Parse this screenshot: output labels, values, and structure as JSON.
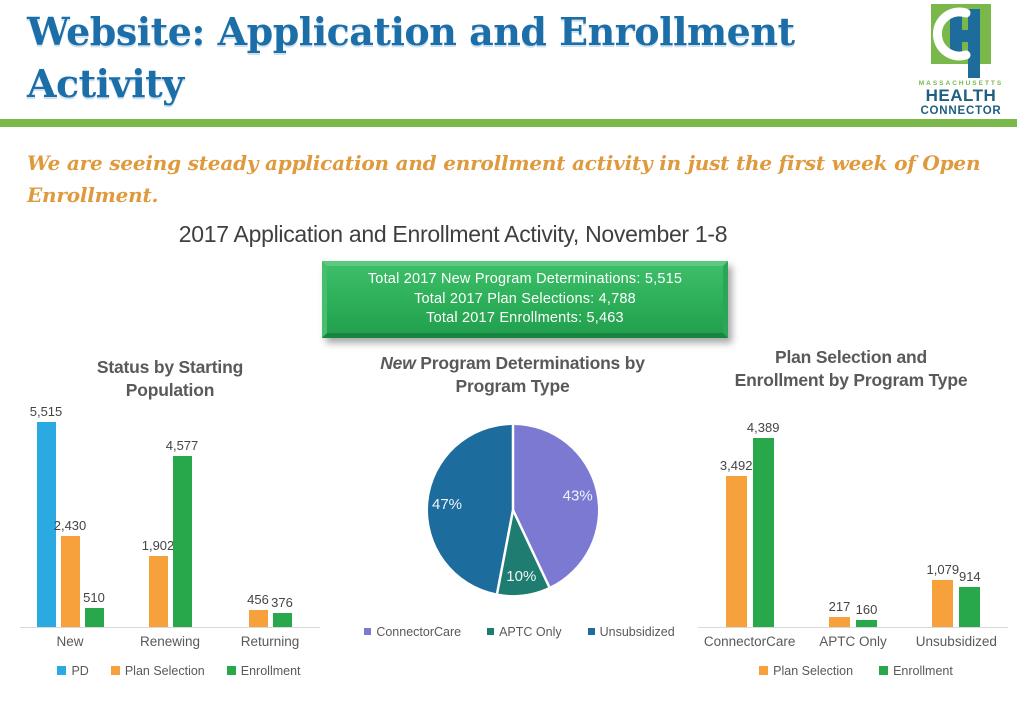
{
  "header": {
    "title": "Website: Application and Enrollment Activity",
    "logo": {
      "brand_top": "MASSACHUSETTS",
      "brand_mid": "HEALTH",
      "brand_bottom": "CONNECTOR"
    }
  },
  "intro_text": "We are seeing steady application and enrollment activity in just the first week of Open Enrollment.",
  "section_title": "2017 Application and Enrollment Activity, November 1-8",
  "summary_box": {
    "lines": [
      "Total 2017 New Program Determinations: 5,515",
      "Total 2017 Plan Selections: 4,788",
      "Total 2017 Enrollments: 5,463"
    ]
  },
  "colors": {
    "header_blue": "#1B6EA8",
    "divider_green": "#7AB84C",
    "intro_orange": "#E09A3E",
    "box_green": "#2CAF58",
    "bar_blue": "#2BAAE2",
    "bar_orange": "#F7A13C",
    "bar_green": "#28A84B",
    "pie_purple": "#7B79D2",
    "pie_teal": "#1E7C70",
    "pie_blue": "#1D6C9E",
    "title_gray": "#595959"
  },
  "chart_data": [
    {
      "type": "bar",
      "title": "Status by Starting Population",
      "categories": [
        "New",
        "Renewing",
        "Returning"
      ],
      "series": [
        {
          "name": "PD",
          "color": "#2BAAE2",
          "values": [
            5515,
            null,
            null
          ],
          "labels": [
            "5,515",
            null,
            null
          ]
        },
        {
          "name": "Plan Selection",
          "color": "#F7A13C",
          "values": [
            2430,
            1902,
            456
          ],
          "labels": [
            "2,430",
            "1,902",
            "456"
          ]
        },
        {
          "name": "Enrollment",
          "color": "#28A84B",
          "values": [
            510,
            4577,
            376
          ],
          "labels": [
            "510",
            "4,577",
            "376"
          ]
        }
      ],
      "ymax": 5515,
      "grid": false,
      "legend_position": "bottom"
    },
    {
      "type": "pie",
      "title_em": "New",
      "title_rest": " Program Determinations by Program Type",
      "slices": [
        {
          "label": "ConnectorCare",
          "pct": 43,
          "display": "43%",
          "color": "#7B79D2"
        },
        {
          "label": "APTC Only",
          "pct": 10,
          "display": "10%",
          "color": "#1E7C70"
        },
        {
          "label": "Unsubsidized",
          "pct": 47,
          "display": "47%",
          "color": "#1D6C9E"
        }
      ],
      "start_angle_deg": 0,
      "direction": "clockwise",
      "legend_position": "bottom"
    },
    {
      "type": "bar",
      "title": "Plan Selection and Enrollment by Program Type",
      "categories": [
        "ConnectorCare",
        "APTC Only",
        "Unsubsidized"
      ],
      "series": [
        {
          "name": "Plan Selection",
          "color": "#F7A13C",
          "values": [
            3492,
            217,
            1079
          ],
          "labels": [
            "3,492",
            "217",
            "1,079"
          ]
        },
        {
          "name": "Enrollment",
          "color": "#28A84B",
          "values": [
            4389,
            160,
            914
          ],
          "labels": [
            "4,389",
            "160",
            "914"
          ]
        }
      ],
      "ymax": 4389,
      "grid": false,
      "legend_position": "bottom"
    }
  ]
}
